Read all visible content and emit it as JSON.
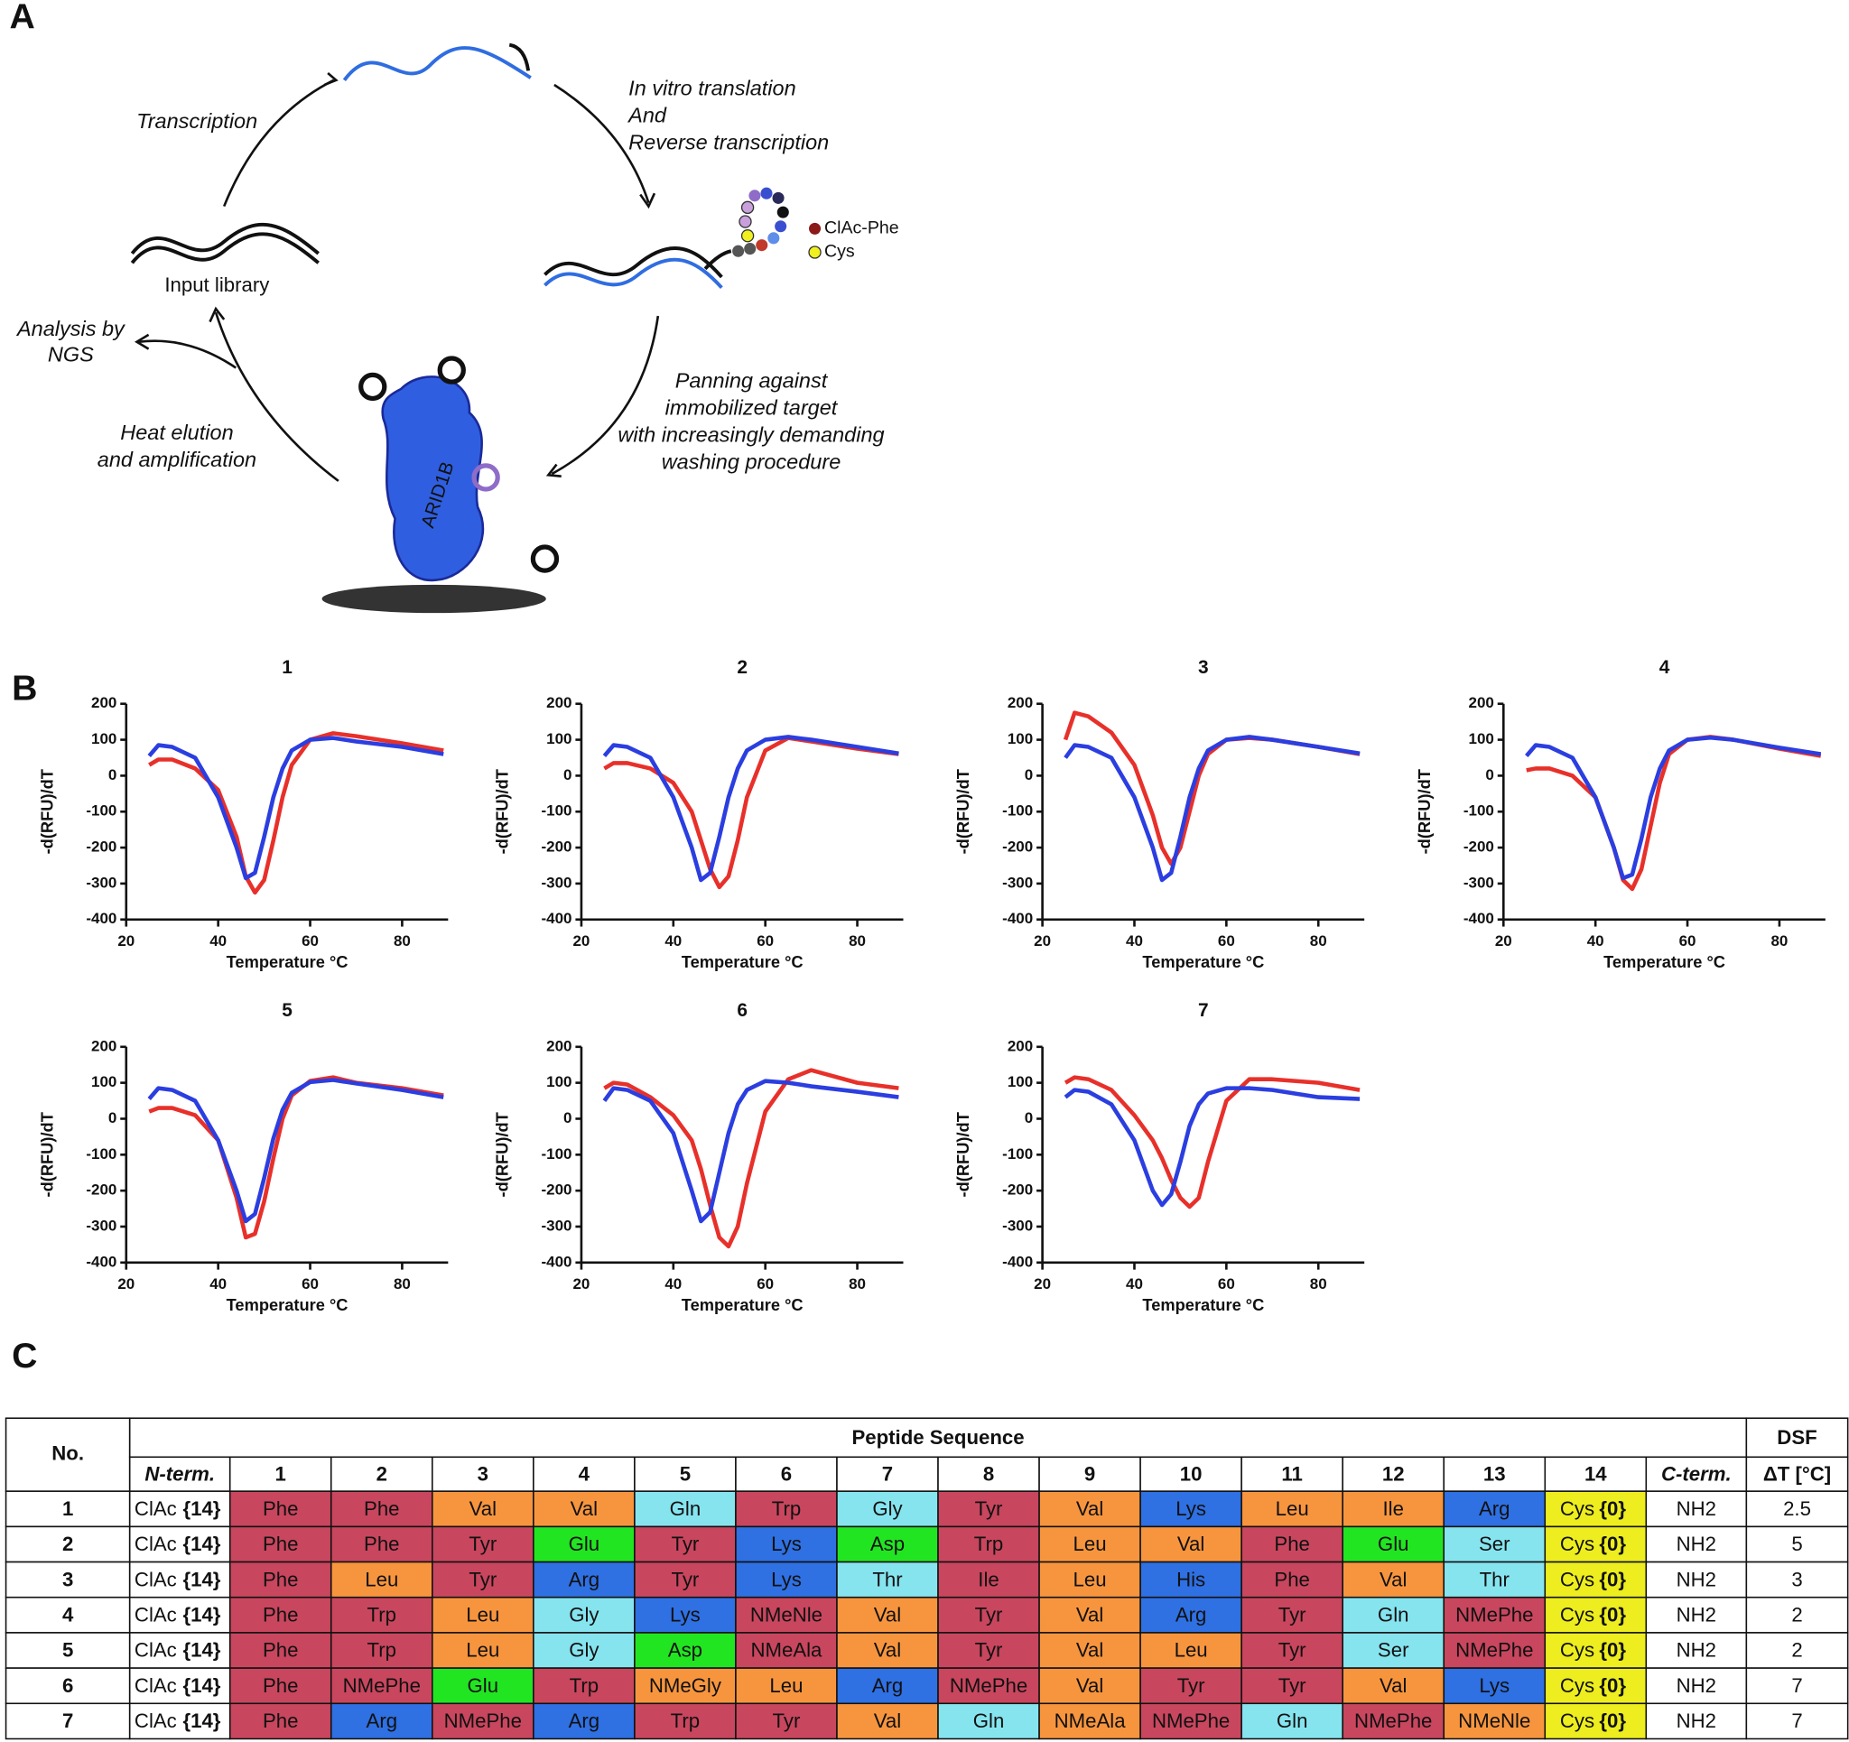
{
  "panels": {
    "a": "A",
    "b": "B",
    "c": "C"
  },
  "diagram": {
    "transcription": "Transcription",
    "translation": [
      "In vitro translation",
      "And",
      "Reverse transcription"
    ],
    "legend": [
      "ClAc-Phe",
      "Cys"
    ],
    "input_library": "Input library",
    "analysis": [
      "Analysis by",
      "NGS"
    ],
    "panning": [
      "Panning against",
      "immobilized target",
      "with increasingly demanding",
      "washing procedure"
    ],
    "elution": [
      "Heat elution",
      "and amplification"
    ],
    "target": "ARID1B"
  },
  "chart_data": [
    {
      "type": "line",
      "title": "1",
      "x_label": "Temperature °C",
      "y_label": "-d(RFU)/dT",
      "x": [
        25,
        27,
        30,
        35,
        40,
        44,
        46,
        48,
        50,
        52,
        54,
        56,
        60,
        65,
        70,
        80,
        89
      ],
      "xlim": [
        20,
        90
      ],
      "xticks": [
        20,
        40,
        60,
        80
      ],
      "ylim": [
        -400,
        200
      ],
      "yticks": [
        -400,
        -300,
        -200,
        -100,
        0,
        100,
        200
      ],
      "series": [
        {
          "color": "#e8302a",
          "values": [
            30,
            45,
            45,
            20,
            -40,
            -170,
            -280,
            -325,
            -290,
            -180,
            -60,
            30,
            100,
            118,
            110,
            90,
            70
          ]
        },
        {
          "color": "#2b3ee0",
          "values": [
            55,
            85,
            80,
            50,
            -60,
            -200,
            -285,
            -270,
            -170,
            -60,
            20,
            70,
            100,
            105,
            95,
            80,
            60
          ]
        }
      ]
    },
    {
      "type": "line",
      "title": "2",
      "x_label": "Temperature °C",
      "y_label": "-d(RFU)/dT",
      "x": [
        25,
        27,
        30,
        35,
        40,
        44,
        46,
        48,
        50,
        52,
        54,
        56,
        60,
        65,
        70,
        80,
        89
      ],
      "xlim": [
        20,
        90
      ],
      "xticks": [
        20,
        40,
        60,
        80
      ],
      "ylim": [
        -400,
        200
      ],
      "yticks": [
        -400,
        -300,
        -200,
        -100,
        0,
        100,
        200
      ],
      "series": [
        {
          "color": "#e8302a",
          "values": [
            20,
            35,
            35,
            20,
            -20,
            -100,
            -180,
            -260,
            -310,
            -280,
            -180,
            -60,
            70,
            105,
            95,
            75,
            60
          ]
        },
        {
          "color": "#2b3ee0",
          "values": [
            55,
            85,
            80,
            50,
            -60,
            -200,
            -290,
            -270,
            -170,
            -60,
            20,
            70,
            100,
            108,
            100,
            80,
            62
          ]
        }
      ]
    },
    {
      "type": "line",
      "title": "3",
      "x_label": "Temperature °C",
      "y_label": "-d(RFU)/dT",
      "x": [
        25,
        27,
        30,
        35,
        40,
        44,
        46,
        48,
        50,
        52,
        54,
        56,
        60,
        65,
        70,
        80,
        89
      ],
      "xlim": [
        20,
        90
      ],
      "xticks": [
        20,
        40,
        60,
        80
      ],
      "ylim": [
        -400,
        200
      ],
      "yticks": [
        -400,
        -300,
        -200,
        -100,
        0,
        100,
        200
      ],
      "series": [
        {
          "color": "#e8302a",
          "values": [
            100,
            175,
            165,
            120,
            30,
            -110,
            -200,
            -245,
            -200,
            -100,
            0,
            60,
            100,
            105,
            100,
            80,
            60
          ]
        },
        {
          "color": "#2b3ee0",
          "values": [
            50,
            85,
            80,
            50,
            -60,
            -200,
            -290,
            -270,
            -170,
            -60,
            20,
            70,
            100,
            108,
            100,
            80,
            62
          ]
        }
      ]
    },
    {
      "type": "line",
      "title": "4",
      "x_label": "Temperature °C",
      "y_label": "-d(RFU)/dT",
      "x": [
        25,
        27,
        30,
        35,
        40,
        44,
        46,
        48,
        50,
        52,
        54,
        56,
        60,
        65,
        70,
        80,
        89
      ],
      "xlim": [
        20,
        90
      ],
      "xticks": [
        20,
        40,
        60,
        80
      ],
      "ylim": [
        -400,
        200
      ],
      "yticks": [
        -400,
        -300,
        -200,
        -100,
        0,
        100,
        200
      ],
      "series": [
        {
          "color": "#e8302a",
          "values": [
            15,
            20,
            20,
            0,
            -60,
            -200,
            -290,
            -315,
            -260,
            -140,
            -20,
            60,
            100,
            108,
            100,
            75,
            55
          ]
        },
        {
          "color": "#2b3ee0",
          "values": [
            55,
            85,
            80,
            50,
            -60,
            -200,
            -285,
            -275,
            -175,
            -60,
            20,
            70,
            100,
            106,
            100,
            78,
            60
          ]
        }
      ]
    },
    {
      "type": "line",
      "title": "5",
      "x_label": "Temperature °C",
      "y_label": "-d(RFU)/dT",
      "x": [
        25,
        27,
        30,
        35,
        40,
        44,
        46,
        48,
        50,
        52,
        54,
        56,
        60,
        65,
        70,
        80,
        89
      ],
      "xlim": [
        20,
        90
      ],
      "xticks": [
        20,
        40,
        60,
        80
      ],
      "ylim": [
        -400,
        200
      ],
      "yticks": [
        -400,
        -300,
        -200,
        -100,
        0,
        100,
        200
      ],
      "series": [
        {
          "color": "#e8302a",
          "values": [
            20,
            30,
            30,
            10,
            -60,
            -220,
            -330,
            -320,
            -230,
            -110,
            0,
            65,
            105,
            115,
            100,
            85,
            65
          ]
        },
        {
          "color": "#2b3ee0",
          "values": [
            55,
            85,
            80,
            50,
            -60,
            -200,
            -285,
            -265,
            -165,
            -55,
            25,
            72,
            102,
            108,
            98,
            80,
            60
          ]
        }
      ]
    },
    {
      "type": "line",
      "title": "6",
      "x_label": "Temperature °C",
      "y_label": "-d(RFU)/dT",
      "x": [
        25,
        27,
        30,
        35,
        40,
        44,
        46,
        48,
        50,
        52,
        54,
        56,
        60,
        65,
        70,
        80,
        89
      ],
      "xlim": [
        20,
        90
      ],
      "xticks": [
        20,
        40,
        60,
        80
      ],
      "ylim": [
        -400,
        200
      ],
      "yticks": [
        -400,
        -300,
        -200,
        -100,
        0,
        100,
        200
      ],
      "series": [
        {
          "color": "#e8302a",
          "values": [
            85,
            100,
            95,
            60,
            10,
            -60,
            -140,
            -240,
            -330,
            -355,
            -300,
            -180,
            20,
            110,
            135,
            100,
            85
          ]
        },
        {
          "color": "#2b3ee0",
          "values": [
            50,
            85,
            80,
            50,
            -40,
            -200,
            -285,
            -260,
            -150,
            -40,
            40,
            80,
            105,
            100,
            90,
            75,
            60
          ]
        }
      ]
    },
    {
      "type": "line",
      "title": "7",
      "x_label": "Temperature °C",
      "y_label": "-d(RFU)/dT",
      "x": [
        25,
        27,
        30,
        35,
        40,
        44,
        46,
        48,
        50,
        52,
        54,
        56,
        60,
        65,
        70,
        80,
        89
      ],
      "xlim": [
        20,
        90
      ],
      "xticks": [
        20,
        40,
        60,
        80
      ],
      "ylim": [
        -400,
        200
      ],
      "yticks": [
        -400,
        -300,
        -200,
        -100,
        0,
        100,
        200
      ],
      "series": [
        {
          "color": "#e8302a",
          "values": [
            100,
            115,
            110,
            80,
            10,
            -60,
            -110,
            -170,
            -220,
            -245,
            -220,
            -120,
            50,
            110,
            110,
            100,
            80
          ]
        },
        {
          "color": "#2b3ee0",
          "values": [
            60,
            80,
            75,
            40,
            -60,
            -200,
            -240,
            -210,
            -120,
            -20,
            40,
            70,
            85,
            85,
            80,
            60,
            55
          ]
        }
      ]
    }
  ],
  "table": {
    "header": {
      "no": "No.",
      "sequence": "Peptide Sequence",
      "dsf": "DSF",
      "n_term": "N-term.",
      "positions": [
        1,
        2,
        3,
        4,
        5,
        6,
        7,
        8,
        9,
        10,
        11,
        12,
        13,
        14
      ],
      "c_term": "C-term.",
      "delta_t": "ΔT  [°C]"
    },
    "palette": {
      "red": "#c8465e",
      "orange": "#f7953e",
      "cyan": "#86e4ef",
      "blue": "#2f70e2",
      "green": "#22e522",
      "yellow": "#eded1f"
    },
    "rows": [
      {
        "no": 1,
        "n_term": "ClAc",
        "n_link": "{14}",
        "residues": [
          "Phe",
          "Phe",
          "Val",
          "Val",
          "Gln",
          "Trp",
          "Gly",
          "Tyr",
          "Val",
          "Lys",
          "Leu",
          "Ile",
          "Arg"
        ],
        "colors": [
          "red",
          "red",
          "orange",
          "orange",
          "cyan",
          "red",
          "cyan",
          "red",
          "orange",
          "blue",
          "orange",
          "orange",
          "blue"
        ],
        "cys": "Cys",
        "c_link": "{0}",
        "c_term": "NH2",
        "delta_t": 2.5
      },
      {
        "no": 2,
        "n_term": "ClAc",
        "n_link": "{14}",
        "residues": [
          "Phe",
          "Phe",
          "Tyr",
          "Glu",
          "Tyr",
          "Lys",
          "Asp",
          "Trp",
          "Leu",
          "Val",
          "Phe",
          "Glu",
          "Ser"
        ],
        "colors": [
          "red",
          "red",
          "red",
          "green",
          "red",
          "blue",
          "green",
          "red",
          "orange",
          "orange",
          "red",
          "green",
          "cyan"
        ],
        "cys": "Cys",
        "c_link": "{0}",
        "c_term": "NH2",
        "delta_t": 5
      },
      {
        "no": 3,
        "n_term": "ClAc",
        "n_link": "{14}",
        "residues": [
          "Phe",
          "Leu",
          "Tyr",
          "Arg",
          "Tyr",
          "Lys",
          "Thr",
          "Ile",
          "Leu",
          "His",
          "Phe",
          "Val",
          "Thr"
        ],
        "colors": [
          "red",
          "orange",
          "red",
          "blue",
          "red",
          "blue",
          "cyan",
          "red",
          "orange",
          "blue",
          "red",
          "orange",
          "cyan"
        ],
        "cys": "Cys",
        "c_link": "{0}",
        "c_term": "NH2",
        "delta_t": 3
      },
      {
        "no": 4,
        "n_term": "ClAc",
        "n_link": "{14}",
        "residues": [
          "Phe",
          "Trp",
          "Leu",
          "Gly",
          "Lys",
          "NMeNle",
          "Val",
          "Tyr",
          "Val",
          "Arg",
          "Tyr",
          "Gln",
          "NMePhe"
        ],
        "colors": [
          "red",
          "red",
          "orange",
          "cyan",
          "blue",
          "red",
          "orange",
          "red",
          "orange",
          "blue",
          "red",
          "cyan",
          "red"
        ],
        "cys": "Cys",
        "c_link": "{0}",
        "c_term": "NH2",
        "delta_t": 2
      },
      {
        "no": 5,
        "n_term": "ClAc",
        "n_link": "{14}",
        "residues": [
          "Phe",
          "Trp",
          "Leu",
          "Gly",
          "Asp",
          "NMeAla",
          "Val",
          "Tyr",
          "Val",
          "Leu",
          "Tyr",
          "Ser",
          "NMePhe"
        ],
        "colors": [
          "red",
          "red",
          "orange",
          "cyan",
          "green",
          "red",
          "orange",
          "red",
          "orange",
          "orange",
          "red",
          "cyan",
          "red"
        ],
        "cys": "Cys",
        "c_link": "{0}",
        "c_term": "NH2",
        "delta_t": 2
      },
      {
        "no": 6,
        "n_term": "ClAc",
        "n_link": "{14}",
        "residues": [
          "Phe",
          "NMePhe",
          "Glu",
          "Trp",
          "NMeGly",
          "Leu",
          "Arg",
          "NMePhe",
          "Val",
          "Tyr",
          "Tyr",
          "Val",
          "Lys"
        ],
        "colors": [
          "red",
          "red",
          "green",
          "red",
          "orange",
          "orange",
          "blue",
          "red",
          "orange",
          "red",
          "red",
          "orange",
          "blue"
        ],
        "cys": "Cys",
        "c_link": "{0}",
        "c_term": "NH2",
        "delta_t": 7
      },
      {
        "no": 7,
        "n_term": "ClAc",
        "n_link": "{14}",
        "residues": [
          "Phe",
          "Arg",
          "NMePhe",
          "Arg",
          "Trp",
          "Tyr",
          "Val",
          "Gln",
          "NMeAla",
          "NMePhe",
          "Gln",
          "NMePhe",
          "NMeNle"
        ],
        "colors": [
          "red",
          "blue",
          "red",
          "blue",
          "red",
          "red",
          "orange",
          "cyan",
          "orange",
          "red",
          "cyan",
          "red",
          "orange"
        ],
        "cys": "Cys",
        "c_link": "{0}",
        "c_term": "NH2",
        "delta_t": 7
      }
    ]
  }
}
